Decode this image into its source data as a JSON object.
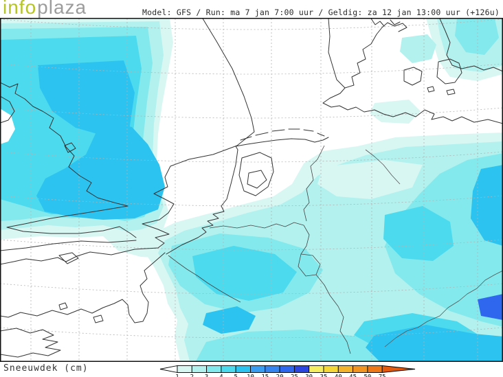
{
  "header": {
    "logo": {
      "part1": "info",
      "part2": "plaza",
      "part1_color": "#b5c42a",
      "part2_color": "#9c9c9c"
    },
    "model_line": "Model: GFS / Run: ma 7 jan 7:00 uur / Geldig: za 12 jan 13:00 uur (+126u)"
  },
  "footer": {
    "label": "Sneeuwdek (cm)"
  },
  "colorbar": {
    "values": [
      "1",
      "2",
      "3",
      "4",
      "5",
      "10",
      "15",
      "20",
      "25",
      "30",
      "35",
      "40",
      "45",
      "50",
      "75"
    ],
    "segment_colors": [
      "#d8f7f3",
      "#b2f1ee",
      "#84e9ec",
      "#4bdaee",
      "#2cc3f1",
      "#3b9df2",
      "#3584ef",
      "#2f68ee",
      "#2b46e0",
      "#f5ee63",
      "#f6d73a",
      "#f3b32c",
      "#f19422",
      "#ee7817"
    ],
    "left_arrow_color": "#ffffff",
    "right_arrow_color": "#e25a10"
  }
}
